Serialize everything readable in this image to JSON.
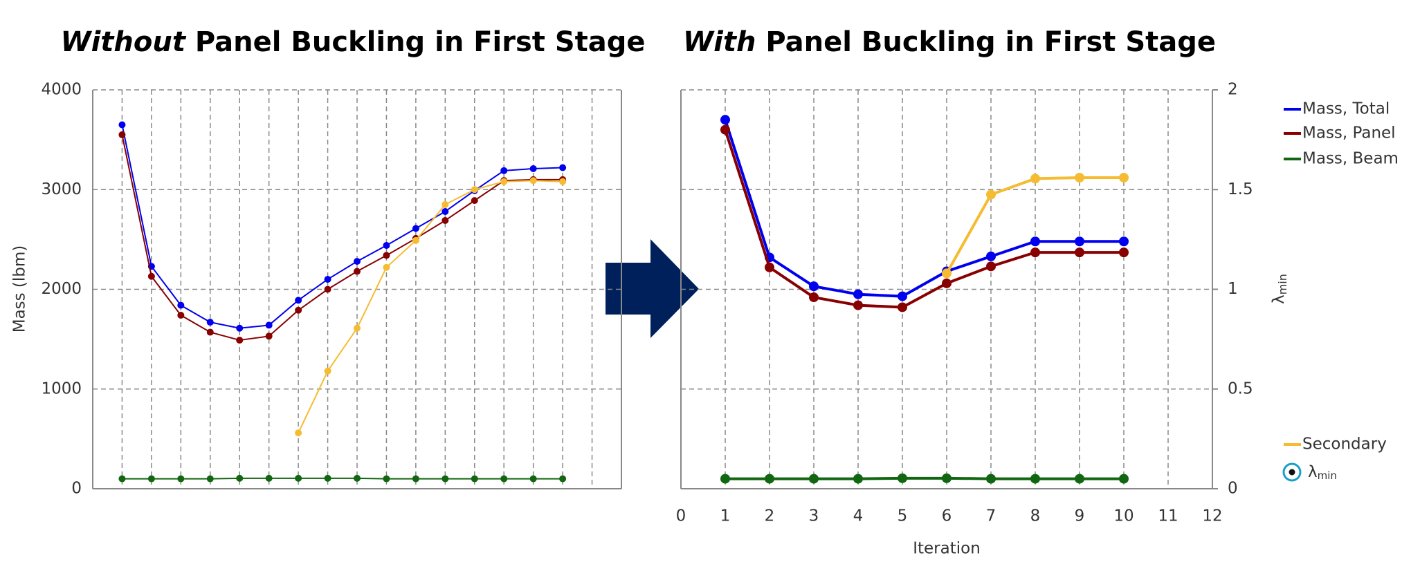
{
  "chart_data": [
    {
      "type": "line",
      "title_emphasis": "Without",
      "title": "Panel Buckling in First Stage",
      "ylabel": "Mass (lbm)",
      "x": [
        1,
        2,
        3,
        4,
        5,
        6,
        7,
        8,
        9,
        10,
        11,
        12,
        13,
        14,
        15,
        16
      ],
      "xlim": [
        0,
        18
      ],
      "xticks": [
        0,
        1,
        2,
        3,
        4,
        5,
        6,
        7,
        8,
        9,
        10,
        11,
        12,
        13,
        14,
        15,
        16,
        17,
        18
      ],
      "xtick_labels": false,
      "ylim": [
        0,
        4000
      ],
      "yticks": [
        0,
        1000,
        2000,
        3000,
        4000
      ],
      "ytick_labels": true,
      "grid": true,
      "marker_size": 5,
      "line_width": 2,
      "series": [
        {
          "color": "#0000ee",
          "values": [
            3650,
            2230,
            1840,
            1670,
            1610,
            1640,
            1890,
            2100,
            2280,
            2440,
            2610,
            2780,
            2990,
            3190,
            3210,
            3220
          ]
        },
        {
          "color": "#880000",
          "values": [
            3550,
            2130,
            1740,
            1570,
            1490,
            1530,
            1790,
            2000,
            2180,
            2340,
            2510,
            2690,
            2890,
            3090,
            3100,
            3100
          ]
        },
        {
          "color": "#116611",
          "values": [
            100,
            100,
            100,
            100,
            105,
            105,
            105,
            105,
            105,
            100,
            100,
            100,
            100,
            100,
            100,
            100
          ]
        },
        {
          "color": "#f5bc31",
          "values": [
            null,
            null,
            null,
            null,
            null,
            null,
            560,
            1180,
            1610,
            2220,
            2490,
            2850,
            3000,
            3080,
            3090,
            3080
          ]
        }
      ]
    },
    {
      "type": "line",
      "title_emphasis": "With",
      "title": "Panel Buckling in First Stage",
      "xlabel": "Iteration",
      "y2label_symbol": "λ",
      "y2label_subscript": "min",
      "x": [
        1,
        2,
        3,
        4,
        5,
        6,
        7,
        8,
        9,
        10
      ],
      "xlim": [
        0,
        12
      ],
      "xticks": [
        0,
        1,
        2,
        3,
        4,
        5,
        6,
        7,
        8,
        9,
        10,
        11,
        12
      ],
      "xtick_labels": true,
      "ylim": [
        0,
        4000
      ],
      "yticks": [
        0,
        1000,
        2000,
        3000,
        4000
      ],
      "ytick_labels": false,
      "y2lim": [
        0,
        2
      ],
      "y2ticks": [
        0,
        0.5,
        1,
        1.5,
        2
      ],
      "grid": true,
      "marker_size": 7,
      "line_width": 4,
      "series": [
        {
          "name": "Mass, Total",
          "color": "#0000ee",
          "values": [
            3700,
            2320,
            2030,
            1950,
            1930,
            2180,
            2330,
            2480,
            2480,
            2480
          ]
        },
        {
          "name": "Mass, Panel",
          "color": "#880000",
          "values": [
            3600,
            2220,
            1920,
            1840,
            1820,
            2060,
            2230,
            2370,
            2370,
            2370
          ]
        },
        {
          "name": "Mass, Beam",
          "color": "#116611",
          "values": [
            100,
            100,
            100,
            100,
            105,
            105,
            100,
            100,
            100,
            100
          ]
        },
        {
          "name": "Secondary",
          "color": "#f5bc31",
          "values": [
            null,
            null,
            null,
            null,
            null,
            2160,
            2950,
            3110,
            3120,
            3120
          ]
        }
      ],
      "legend_marker_symbol": "λ",
      "legend_marker_subscript": "min",
      "legend_marker_color": "#1a9fc9"
    }
  ]
}
